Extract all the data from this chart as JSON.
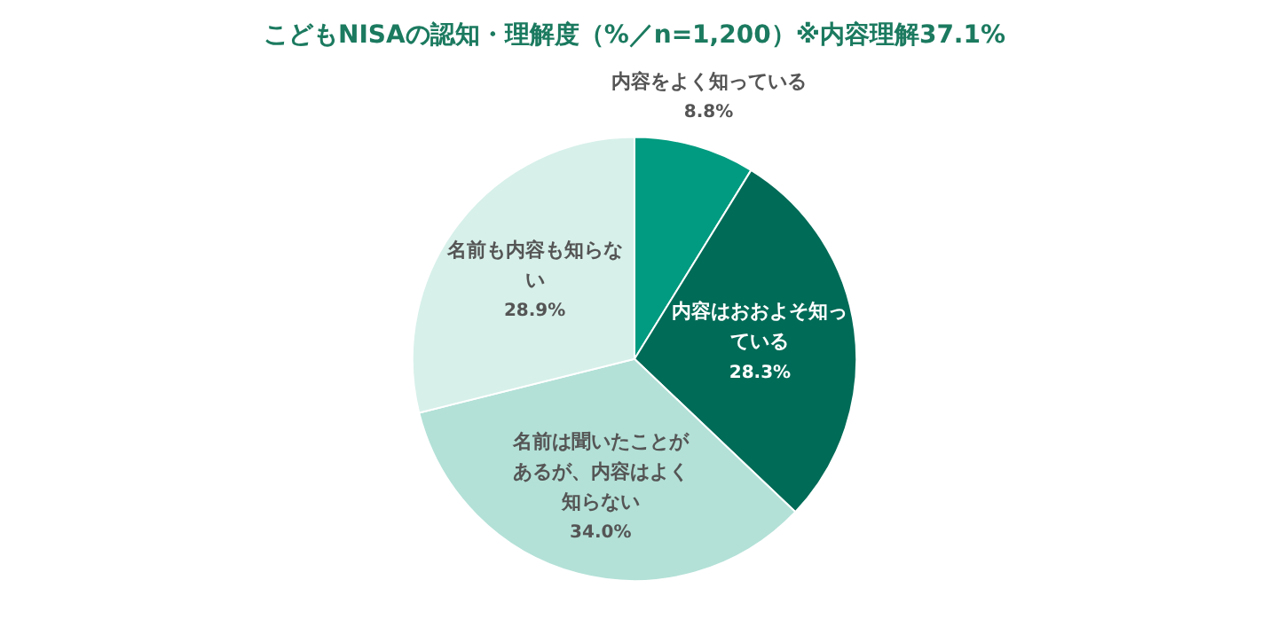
{
  "chart_data": {
    "type": "pie",
    "title": "こどもNISAの認知・理解度（%／n=1,200）※内容理解37.1%",
    "categories": [
      "内容をよく知っている",
      "内容はおおよそ知っている",
      "名前は聞いたことがあるが、内容はよく知らない",
      "名前も内容も知らない"
    ],
    "values": [
      8.8,
      28.3,
      34.0,
      28.9
    ],
    "value_labels": [
      "8.8%",
      "28.3%",
      "34.0%",
      "28.9%"
    ],
    "colors": [
      "#009b80",
      "#006b57",
      "#b3e1d7",
      "#d7f0ea"
    ],
    "legend": false
  }
}
